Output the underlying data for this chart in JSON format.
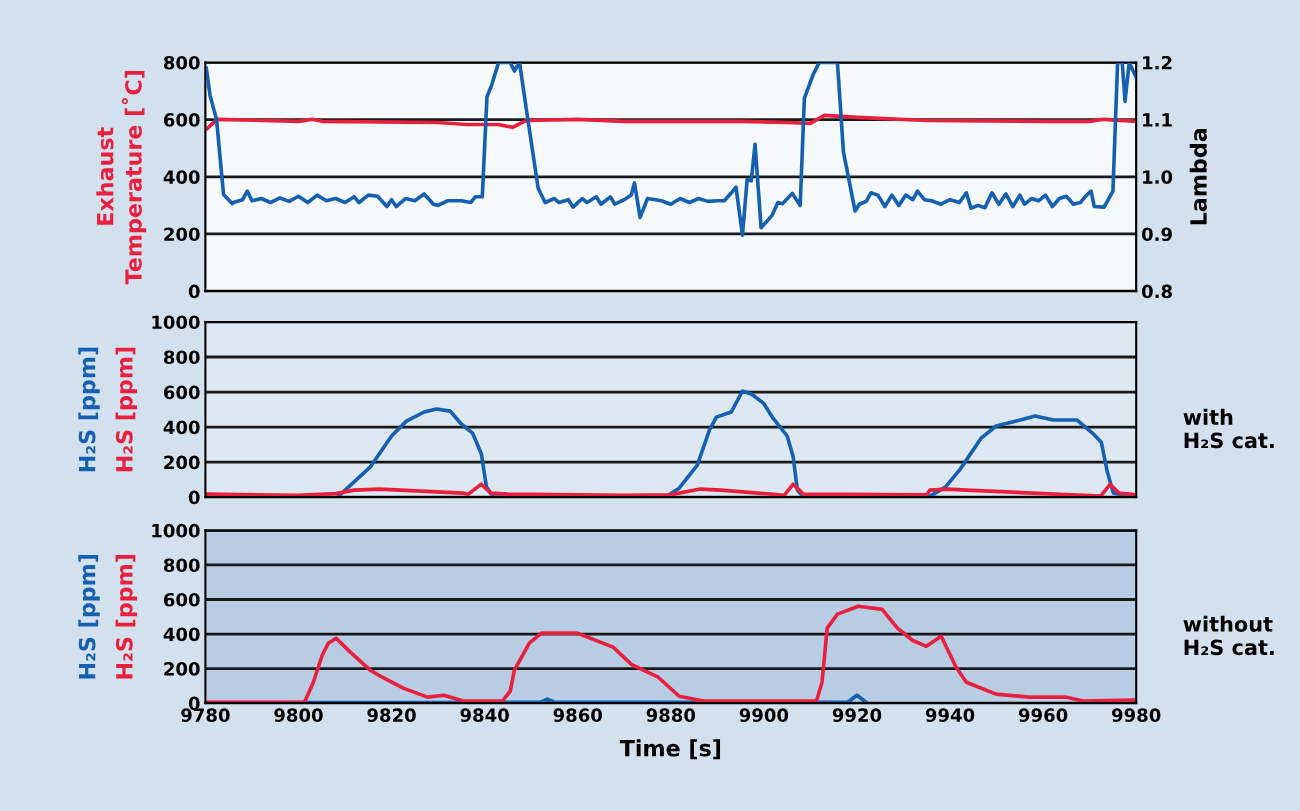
{
  "chart_data": [
    {
      "type": "line",
      "ylabel": "Exhaust\nTemperature [˚C]",
      "y2label": "Lambda",
      "xlim": [
        9780,
        9980
      ],
      "xticks": [
        9780,
        9800,
        9820,
        9840,
        9860,
        9880,
        9900,
        9920,
        9940,
        9960,
        9980
      ],
      "ylim": [
        0,
        800
      ],
      "yticks": [
        0,
        200,
        400,
        600,
        800
      ],
      "y2lim": [
        0.8,
        1.2
      ],
      "y2ticks": [
        0.8,
        0.9,
        {
          "value": 1.0,
          "label": "1.0"
        },
        1.1,
        1.2
      ],
      "grid": "y",
      "tick_labels": "y",
      "marker": "none",
      "line_style": "solid",
      "series": [
        {
          "color": "#e8203e",
          "x": [
            9780.4,
            9782.5,
            9800,
            9803,
            9805,
            9830,
            9836,
            9843,
            9846,
            9849,
            9860,
            9870,
            9880,
            9895,
            9905,
            9910,
            9913,
            9920,
            9935,
            9960,
            9970,
            9973,
            9980
          ],
          "values": [
            569,
            601,
            594,
            601,
            594,
            590,
            583,
            583,
            573,
            597,
            601,
            594,
            594,
            594,
            590,
            587,
            615,
            608,
            597,
            594,
            594,
            601,
            594
          ]
        },
        {
          "color": "#1560b0",
          "axis": "y2",
          "x": [
            9780.2,
            9781,
            9782.4,
            9783.9,
            9785.8,
            9786,
            9788,
            9789,
            9790,
            9792,
            9794,
            9796,
            9798,
            9800,
            9802,
            9804,
            9806,
            9808,
            9810,
            9812,
            9813,
            9815,
            9817,
            9819,
            9820,
            9821,
            9823,
            9825,
            9827,
            9829,
            9830,
            9832,
            9835,
            9837,
            9838,
            9839.5,
            9840.5,
            9841.5,
            9843,
            9845.5,
            9846.4,
            9847.5,
            9849,
            9851.5,
            9853,
            9855,
            9856,
            9858,
            9859,
            9861,
            9862,
            9864,
            9865,
            9867,
            9868,
            9870,
            9871.5,
            9872.2,
            9873.4,
            9875,
            9878,
            9880,
            9882,
            9884,
            9886,
            9888,
            9890,
            9891.5,
            9893,
            9894,
            9895.4,
            9896.4,
            9897.3,
            9898.1,
            9899.4,
            9901.8,
            9903,
            9904,
            9906.1,
            9907.8,
            9908.7,
            9910.6,
            9911.9,
            9915.8,
            9917.1,
            9919.6,
            9920.5,
            9922,
            9923,
            9924.5,
            9926,
            9927.5,
            9929,
            9930.5,
            9932,
            9933,
            9934.5,
            9936,
            9938,
            9940,
            9942,
            9943.5,
            9944.5,
            9946,
            9947.5,
            9949,
            9950.5,
            9952,
            9953.5,
            9955,
            9956,
            9957.5,
            9959,
            9960.5,
            9962,
            9963.5,
            9965,
            9966.5,
            9968,
            9969,
            9970.3,
            9971,
            9973.1,
            9975,
            9976,
            9977,
            9977.6,
            9978.5,
            9980
          ],
          "values": [
            1.19,
            1.142,
            1.1,
            0.969,
            0.953,
            0.955,
            0.96,
            0.975,
            0.958,
            0.962,
            0.955,
            0.963,
            0.957,
            0.966,
            0.955,
            0.968,
            0.958,
            0.962,
            0.955,
            0.965,
            0.955,
            0.968,
            0.966,
            0.948,
            0.96,
            0.948,
            0.962,
            0.958,
            0.97,
            0.952,
            0.95,
            0.958,
            0.958,
            0.955,
            0.965,
            0.965,
            1.14,
            1.16,
            1.2,
            1.2,
            1.185,
            1.2,
            1.116,
            0.98,
            0.955,
            0.962,
            0.955,
            0.96,
            0.947,
            0.962,
            0.955,
            0.965,
            0.952,
            0.965,
            0.952,
            0.96,
            0.968,
            0.989,
            0.929,
            0.962,
            0.958,
            0.952,
            0.962,
            0.955,
            0.962,
            0.957,
            0.958,
            0.958,
            0.972,
            0.982,
            0.898,
            0.995,
            0.993,
            1.057,
            0.911,
            0.933,
            0.955,
            0.953,
            0.971,
            0.95,
            1.137,
            1.179,
            1.2,
            1.2,
            1.043,
            0.94,
            0.952,
            0.957,
            0.972,
            0.968,
            0.948,
            0.968,
            0.95,
            0.968,
            0.96,
            0.975,
            0.96,
            0.958,
            0.952,
            0.96,
            0.955,
            0.972,
            0.945,
            0.95,
            0.946,
            0.972,
            0.952,
            0.97,
            0.948,
            0.968,
            0.952,
            0.962,
            0.958,
            0.968,
            0.948,
            0.962,
            0.966,
            0.952,
            0.955,
            0.965,
            0.975,
            0.948,
            0.947,
            0.975,
            1.2,
            1.2,
            1.132,
            1.2,
            1.174
          ]
        }
      ]
    },
    {
      "type": "line",
      "xlim": [
        9780,
        9980
      ],
      "xticks": [
        9780,
        9800,
        9820,
        9840,
        9860,
        9880,
        9900,
        9920,
        9940,
        9960,
        9980
      ],
      "ylim": [
        0,
        1000
      ],
      "yticks": [
        0,
        200,
        400,
        600,
        800,
        1000
      ],
      "grid": "y",
      "tick_labels": "y",
      "marker": "none",
      "line_style": "solid",
      "annotations": [
        "with\nH₂S cat."
      ],
      "series": [
        {
          "name": "H₂S [ppm]",
          "color": "#1560b0",
          "x": [
            9808.4,
            9815.4,
            9820,
            9823.2,
            9827,
            9829.6,
            9832.6,
            9834.8,
            9837.4,
            9839.3,
            9840.4,
            9841.9,
            9879.2,
            9881.8,
            9885.7,
            9888.3,
            9889.8,
            9893,
            9895.4,
            9897.3,
            9899.9,
            9901.8,
            9905,
            9906.3,
            9907.2,
            9908.5,
            9935.7,
            9939,
            9942.2,
            9946.7,
            9949.9,
            9955.1,
            9958.3,
            9962.2,
            9967.3,
            9970.6,
            9972.5,
            9973.8,
            9975.1,
            9978.5,
            9980
          ],
          "values": [
            0,
            171,
            349,
            434,
            486,
            503,
            491,
            423,
            366,
            246,
            57,
            0,
            6,
            51,
            183,
            383,
            457,
            486,
            606,
            589,
            537,
            457,
            349,
            229,
            40,
            0,
            6,
            57,
            160,
            337,
            406,
            440,
            463,
            440,
            440,
            366,
            314,
            143,
            23,
            0,
            0
          ]
        },
        {
          "name": "H₂S [ppm]",
          "color": "#e8203e",
          "x": [
            9780.5,
            9800,
            9808,
            9812,
            9817.4,
            9835.4,
            9836.5,
            9839.3,
            9841.3,
            9845,
            9870,
            9880,
            9881.8,
            9886.3,
            9890.8,
            9904.4,
            9906.3,
            9908.5,
            9935,
            9935.7,
            9939.6,
            9943.5,
            9972.4,
            9974.4,
            9976.3,
            9980
          ],
          "values": [
            17,
            11,
            20,
            40,
            46,
            23,
            17,
            74,
            23,
            17,
            11,
            14,
            23,
            46,
            40,
            11,
            74,
            17,
            14,
            40,
            46,
            40,
            6,
            74,
            23,
            14
          ]
        }
      ]
    },
    {
      "type": "line",
      "xlabel": "Time [s]",
      "xlim": [
        9780,
        9980
      ],
      "xticks": [
        9780,
        9800,
        9820,
        9840,
        9860,
        9880,
        9900,
        9920,
        9940,
        9960,
        9980
      ],
      "ylim": [
        0,
        1000
      ],
      "yticks": [
        0,
        200,
        400,
        600,
        800,
        1000
      ],
      "grid": "y",
      "marker": "none",
      "line_style": "solid",
      "annotations": [
        "without\nH₂S cat."
      ],
      "series": [
        {
          "name": "H₂S [ppm]",
          "color": "#1560b0",
          "x": [
            9780,
            9830,
            9852,
            9853.5,
            9855,
            9918,
            9920,
            9922
          ],
          "values": [
            3,
            3,
            5,
            23,
            5,
            5,
            46,
            5
          ]
        },
        {
          "name": "H₂S [ppm]",
          "color": "#e8203e",
          "x": [
            9780.2,
            9801.3,
            9803.2,
            9805.1,
            9806.4,
            9808.1,
            9810.9,
            9815.4,
            9818,
            9822.5,
            9827.7,
            9831.3,
            9835.4,
            9843.8,
            9845.5,
            9846.4,
            9849.6,
            9852.2,
            9859.9,
            9867.6,
            9871.5,
            9877.3,
            9881.8,
            9887,
            9905,
            9911.3,
            9912.5,
            9913.6,
            9915.8,
            9920.3,
            9925.4,
            9928.7,
            9931.9,
            9934.9,
            9938.1,
            9941.3,
            9943.5,
            9949.9,
            9957,
            9964.8,
            9968.6,
            9979.6
          ],
          "values": [
            5,
            5,
            121,
            277,
            347,
            376,
            301,
            191,
            150,
            87,
            35,
            46,
            12,
            12,
            69,
            191,
            347,
            405,
            405,
            324,
            225,
            150,
            40,
            12,
            12,
            12,
            121,
            434,
            515,
            561,
            543,
            434,
            364,
            329,
            387,
            208,
            121,
            52,
            35,
            35,
            12,
            17
          ]
        }
      ]
    }
  ]
}
